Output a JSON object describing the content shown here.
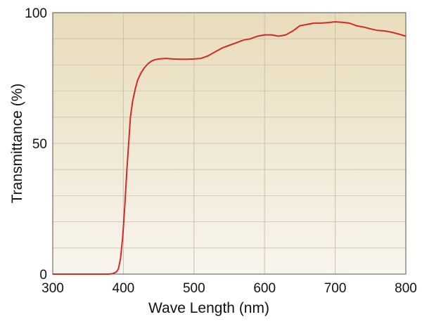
{
  "chart_data": {
    "type": "line",
    "xlabel": "Wave Length (nm)",
    "ylabel": "Transmittance (%)",
    "xlim": [
      300,
      800
    ],
    "ylim": [
      0,
      100
    ],
    "x_ticks": [
      300,
      400,
      500,
      600,
      700,
      800
    ],
    "y_ticks": [
      0,
      50,
      100
    ],
    "grid": true,
    "minor_grid_y_step": 10,
    "colors": {
      "line": "#d42a26",
      "plot_bg_top": "#e9dcbb",
      "plot_bg_bottom": "#f8f5ee",
      "grid": "#c9c1ad"
    },
    "series": [
      {
        "x": [
          300,
          370,
          380,
          385,
          390,
          393,
          396,
          399,
          402,
          405,
          408,
          410,
          413,
          417,
          420,
          425,
          430,
          435,
          440,
          445,
          450,
          460,
          470,
          480,
          490,
          500,
          510,
          520,
          530,
          540,
          550,
          560,
          570,
          580,
          590,
          600,
          610,
          620,
          630,
          640,
          650,
          660,
          670,
          680,
          690,
          700,
          710,
          720,
          730,
          740,
          750,
          760,
          770,
          780,
          790,
          800
        ],
        "y": [
          0,
          0,
          0,
          0.2,
          0.8,
          2,
          6,
          14,
          26,
          40,
          52,
          60,
          66,
          71,
          74,
          77,
          79,
          80.5,
          81.5,
          82,
          82.3,
          82.5,
          82.3,
          82.2,
          82.2,
          82.3,
          82.5,
          83.5,
          85,
          86.5,
          87.5,
          88.5,
          89.5,
          90,
          91,
          91.5,
          91.5,
          91,
          91.5,
          93,
          95,
          95.5,
          96,
          96,
          96.2,
          96.5,
          96.3,
          96,
          95,
          94.5,
          93.8,
          93.2,
          93,
          92.5,
          91.8,
          91
        ]
      }
    ]
  }
}
